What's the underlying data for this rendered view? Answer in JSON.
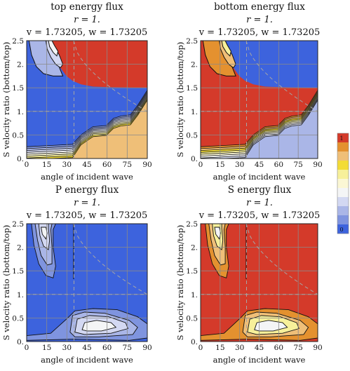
{
  "colors": {
    "red": "#d43a2a",
    "orange": "#e4912f",
    "peach": "#efbf78",
    "yellow_dark": "#f3dc36",
    "yellow_light": "#f7f09a",
    "cream": "#fbf7d4",
    "white": "#f4f5f6",
    "lavender": "#d3d8f2",
    "periwinkle": "#aab6e7",
    "blue_mid": "#7f94df",
    "blue": "#3d63dd",
    "grid": "#8a8a8a",
    "dashed": "#a6a6a6",
    "contour": "#111111"
  },
  "legend": {
    "top_label": "1",
    "bottom_label": "0",
    "bands": [
      "#d43a2a",
      "#e4912f",
      "#efbf78",
      "#f3dc36",
      "#f7f09a",
      "#fbf7d4",
      "#f4f5f6",
      "#d3d8f2",
      "#aab6e7",
      "#7f94df",
      "#3d63dd"
    ]
  },
  "chart_data": [
    {
      "type": "contour",
      "title": "top energy flux",
      "subtitle1": "r = 1.",
      "subtitle2": "v = 1.73205, w = 1.73205",
      "xlabel": "angle of incident wave",
      "ylabel": "S velocity ratio (bottom/top)",
      "xlim": [
        0,
        90
      ],
      "ylim": [
        0,
        2.5
      ],
      "x_ticks": [
        "0",
        "15",
        "30",
        "45",
        "60",
        "75",
        "90"
      ],
      "y_ticks": [
        "0.",
        "0.5",
        "1.",
        "1.5",
        "2.",
        "2.5"
      ],
      "grid": true,
      "value_range": [
        0,
        1
      ],
      "dominant_regions": [
        "upper-right high (red)",
        "lower half low (blue)"
      ]
    },
    {
      "type": "contour",
      "title": "bottom energy flux",
      "subtitle1": "r = 1.",
      "subtitle2": "v = 1.73205, w = 1.73205",
      "xlabel": "angle of incident wave",
      "ylabel": "S velocity ratio (bottom/top)",
      "xlim": [
        0,
        90
      ],
      "ylim": [
        0,
        2.5
      ],
      "x_ticks": [
        "0",
        "15",
        "30",
        "45",
        "60",
        "75",
        "90"
      ],
      "y_ticks": [
        "0.",
        "0.5",
        "1.",
        "1.5",
        "2.",
        "2.5"
      ],
      "grid": true,
      "value_range": [
        0,
        1
      ],
      "dominant_regions": [
        "upper-right low (blue)",
        "lower half high (red)"
      ]
    },
    {
      "type": "contour",
      "title": "P energy flux",
      "subtitle1": "r = 1.",
      "subtitle2": "v = 1.73205, w = 1.73205",
      "xlabel": "angle of incident wave",
      "ylabel": "S velocity ratio (bottom/top)",
      "xlim": [
        0,
        90
      ],
      "ylim": [
        0,
        2.5
      ],
      "x_ticks": [
        "0",
        "15",
        "30",
        "45",
        "60",
        "75",
        "90"
      ],
      "y_ticks": [
        "0.",
        "0.5",
        "1.",
        "1.5",
        "2.",
        "2.5"
      ],
      "grid": true,
      "value_range": [
        0,
        1
      ],
      "dominant_regions": [
        "mostly low (blue)",
        "lobe near x≈10–30, y≈1.2–2.5",
        "lobe near x≈30–85, y≈0.05–0.55"
      ]
    },
    {
      "type": "contour",
      "title": "S energy flux",
      "subtitle1": "r = 1.",
      "subtitle2": "v = 1.73205, w = 1.73205",
      "xlabel": "angle of incident wave",
      "ylabel": "S velocity ratio (bottom/top)",
      "xlim": [
        0,
        90
      ],
      "ylim": [
        0,
        2.5
      ],
      "x_ticks": [
        "0",
        "15",
        "30",
        "45",
        "60",
        "75",
        "90"
      ],
      "y_ticks": [
        "0.",
        "0.5",
        "1.",
        "1.5",
        "2.",
        "2.5"
      ],
      "grid": true,
      "value_range": [
        0,
        1
      ],
      "dominant_regions": [
        "mostly high (red)",
        "lobe near x≈10–30, y≈1.2–2.5",
        "lobe near x≈30–85, y≈0.05–0.55"
      ]
    }
  ]
}
